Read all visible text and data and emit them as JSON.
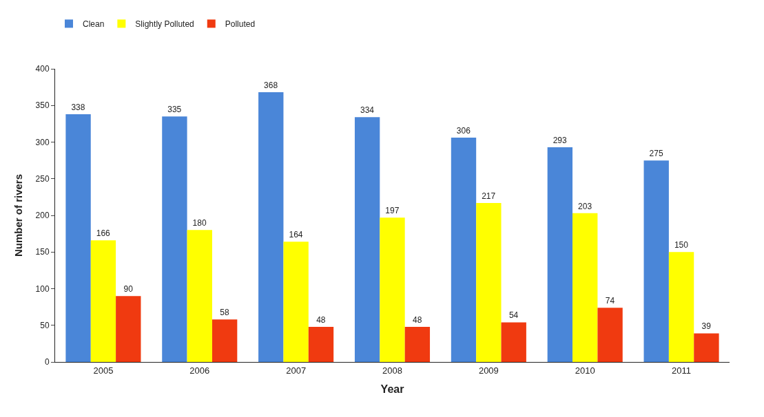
{
  "chart_data": {
    "type": "bar",
    "xlabel": "Year",
    "ylabel": "Number of rivers",
    "categories": [
      "2005",
      "2006",
      "2007",
      "2008",
      "2009",
      "2010",
      "2011"
    ],
    "series": [
      {
        "name": "Clean",
        "color": "#4a86d8",
        "values": [
          338,
          335,
          368,
          334,
          306,
          293,
          275
        ]
      },
      {
        "name": "Slightly Polluted",
        "color": "#ffff00",
        "values": [
          166,
          180,
          164,
          197,
          217,
          203,
          150
        ]
      },
      {
        "name": "Polluted",
        "color": "#f03a10",
        "values": [
          90,
          58,
          48,
          48,
          54,
          74,
          39
        ]
      }
    ],
    "ylim": [
      0,
      400
    ],
    "yticks": [
      0,
      50,
      100,
      150,
      200,
      250,
      300,
      350,
      400
    ],
    "data_labels": true,
    "legend": "top left"
  }
}
